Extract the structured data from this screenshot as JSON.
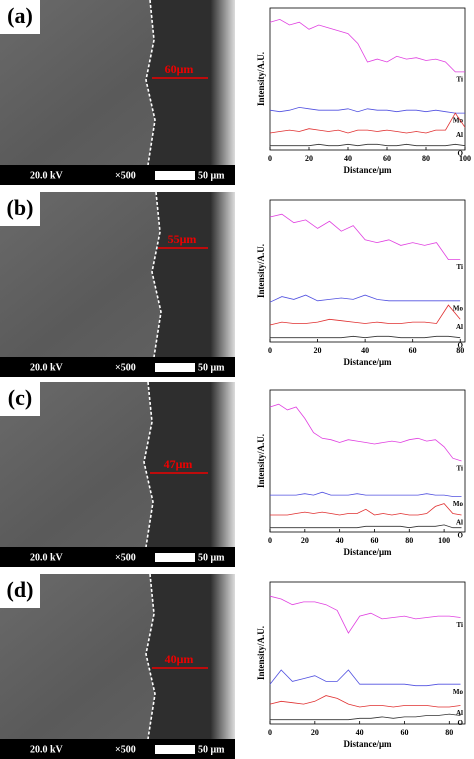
{
  "panels": [
    {
      "label": "(a)",
      "voltage": "20.0 kV",
      "magnification": "×500",
      "scale": "50 μm",
      "thickness": "60μm"
    },
    {
      "label": "(b)",
      "voltage": "20.0 kV",
      "magnification": "×500",
      "scale": "50 μm",
      "thickness": "55μm"
    },
    {
      "label": "(c)",
      "voltage": "20.0 kV",
      "magnification": "×500",
      "scale": "50 μm",
      "thickness": "47μm"
    },
    {
      "label": "(d)",
      "voltage": "20.0 kV",
      "magnification": "×500",
      "scale": "50 μm",
      "thickness": "40μm"
    }
  ],
  "chart_data": [
    {
      "type": "line",
      "xlabel": "Distance/μm",
      "ylabel": "Intensity/A.U.",
      "x": [
        0,
        5,
        10,
        15,
        20,
        25,
        30,
        35,
        40,
        45,
        50,
        55,
        60,
        65,
        70,
        75,
        80,
        85,
        90,
        95,
        100
      ],
      "xlim": [
        0,
        100
      ],
      "xticks": [
        0,
        20,
        40,
        60,
        80,
        100
      ],
      "ylim": [
        0,
        100
      ],
      "series": [
        {
          "name": "Ti",
          "color": "#e040e0",
          "values": [
            90,
            92,
            88,
            90,
            85,
            88,
            86,
            84,
            82,
            75,
            62,
            64,
            62,
            66,
            64,
            65,
            63,
            64,
            62,
            55,
            55
          ]
        },
        {
          "name": "Mo",
          "color": "#5050e0",
          "values": [
            28,
            27,
            28,
            30,
            29,
            28,
            28,
            28,
            29,
            27,
            29,
            28,
            28,
            27,
            28,
            28,
            27,
            28,
            27,
            26,
            26
          ]
        },
        {
          "name": "Al",
          "color": "#e03030",
          "values": [
            12,
            13,
            14,
            13,
            15,
            14,
            13,
            14,
            12,
            14,
            14,
            13,
            14,
            13,
            12,
            13,
            12,
            14,
            14,
            26,
            16
          ]
        },
        {
          "name": "O",
          "color": "#333333",
          "values": [
            3,
            3,
            3,
            3,
            3,
            4,
            3,
            3,
            4,
            3,
            4,
            4,
            3,
            3,
            4,
            3,
            3,
            3,
            3,
            4,
            3
          ]
        }
      ]
    },
    {
      "type": "line",
      "xlabel": "Distance/μm",
      "ylabel": "Intensity/A.U.",
      "x": [
        0,
        5,
        10,
        15,
        20,
        25,
        30,
        35,
        40,
        45,
        50,
        55,
        60,
        65,
        70,
        75,
        80
      ],
      "xlim": [
        0,
        82
      ],
      "xticks": [
        0,
        20,
        40,
        60,
        80
      ],
      "ylim": [
        0,
        100
      ],
      "series": [
        {
          "name": "Ti",
          "color": "#e040e0",
          "values": [
            88,
            90,
            84,
            86,
            80,
            85,
            78,
            82,
            72,
            70,
            72,
            68,
            70,
            68,
            70,
            58,
            58
          ]
        },
        {
          "name": "Mo",
          "color": "#5050e0",
          "values": [
            28,
            32,
            30,
            33,
            29,
            30,
            31,
            30,
            33,
            30,
            29,
            29,
            29,
            29,
            29,
            29,
            29
          ]
        },
        {
          "name": "Al",
          "color": "#e03030",
          "values": [
            12,
            14,
            13,
            13,
            14,
            16,
            15,
            14,
            13,
            14,
            13,
            13,
            14,
            14,
            13,
            26,
            16
          ]
        },
        {
          "name": "O",
          "color": "#333333",
          "values": [
            3,
            3,
            3,
            3,
            3,
            3,
            3,
            4,
            3,
            4,
            4,
            3,
            3,
            3,
            4,
            4,
            3
          ]
        }
      ]
    },
    {
      "type": "line",
      "xlabel": "Distance/μm",
      "ylabel": "Intensity/A.U.",
      "x": [
        0,
        5,
        10,
        15,
        20,
        25,
        30,
        35,
        40,
        45,
        50,
        55,
        60,
        65,
        70,
        75,
        80,
        85,
        90,
        95,
        100,
        105,
        110
      ],
      "xlim": [
        0,
        112
      ],
      "xticks": [
        0,
        20,
        40,
        60,
        80,
        100
      ],
      "ylim": [
        0,
        100
      ],
      "series": [
        {
          "name": "Ti",
          "color": "#e040e0",
          "values": [
            88,
            90,
            86,
            88,
            80,
            70,
            66,
            65,
            63,
            65,
            64,
            63,
            62,
            63,
            64,
            63,
            65,
            66,
            64,
            65,
            60,
            52,
            50
          ]
        },
        {
          "name": "Mo",
          "color": "#5050e0",
          "values": [
            26,
            26,
            26,
            26,
            27,
            26,
            28,
            26,
            26,
            26,
            27,
            26,
            26,
            26,
            26,
            26,
            26,
            26,
            27,
            26,
            26,
            25,
            25
          ]
        },
        {
          "name": "Al",
          "color": "#e03030",
          "values": [
            12,
            12,
            12,
            13,
            14,
            13,
            14,
            13,
            12,
            13,
            13,
            16,
            12,
            13,
            12,
            13,
            12,
            12,
            13,
            18,
            20,
            13,
            12
          ]
        },
        {
          "name": "O",
          "color": "#333333",
          "values": [
            3,
            3,
            3,
            3,
            3,
            3,
            3,
            3,
            3,
            3,
            3,
            4,
            4,
            4,
            4,
            4,
            3,
            4,
            4,
            4,
            5,
            3,
            3
          ]
        }
      ]
    },
    {
      "type": "line",
      "xlabel": "Distance/μm",
      "ylabel": "Intensity/A.U.",
      "x": [
        0,
        5,
        10,
        15,
        20,
        25,
        30,
        35,
        40,
        45,
        50,
        55,
        60,
        65,
        70,
        75,
        80,
        85
      ],
      "xlim": [
        0,
        87
      ],
      "xticks": [
        0,
        20,
        40,
        60,
        80
      ],
      "ylim": [
        0,
        100
      ],
      "series": [
        {
          "name": "Ti",
          "color": "#e040e0",
          "values": [
            90,
            88,
            84,
            86,
            86,
            84,
            80,
            64,
            76,
            78,
            74,
            75,
            76,
            74,
            75,
            76,
            76,
            75
          ]
        },
        {
          "name": "Mo",
          "color": "#5050e0",
          "values": [
            28,
            38,
            30,
            32,
            34,
            30,
            30,
            38,
            28,
            28,
            28,
            28,
            28,
            27,
            27,
            28,
            28,
            28
          ]
        },
        {
          "name": "Al",
          "color": "#e03030",
          "values": [
            14,
            16,
            15,
            14,
            16,
            20,
            18,
            14,
            12,
            13,
            13,
            12,
            13,
            13,
            13,
            12,
            12,
            13
          ]
        },
        {
          "name": "O",
          "color": "#333333",
          "values": [
            3,
            3,
            3,
            3,
            3,
            3,
            3,
            3,
            4,
            4,
            5,
            4,
            5,
            5,
            6,
            6,
            7,
            6
          ]
        }
      ]
    }
  ]
}
